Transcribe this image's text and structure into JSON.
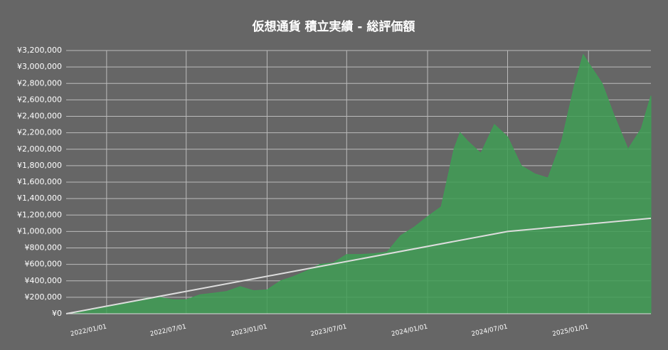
{
  "chart_data": {
    "type": "area",
    "title": "仮想通貨 積立実績 - 総評価額",
    "xlim": [
      "2021/10/01",
      "2025/05/23"
    ],
    "xticks": [
      "2022/01/01",
      "2022/07/01",
      "2023/01/01",
      "2023/07/01",
      "2024/01/01",
      "2024/07/01",
      "2025/01/01"
    ],
    "ylim": [
      0,
      3200000
    ],
    "yticks": [
      {
        "value": 0,
        "label": "¥0"
      },
      {
        "value": 200000,
        "label": "¥200,000"
      },
      {
        "value": 400000,
        "label": "¥400,000"
      },
      {
        "value": 600000,
        "label": "¥600,000"
      },
      {
        "value": 800000,
        "label": "¥800,000"
      },
      {
        "value": 1000000,
        "label": "¥1,000,000"
      },
      {
        "value": 1200000,
        "label": "¥1,200,000"
      },
      {
        "value": 1400000,
        "label": "¥1,400,000"
      },
      {
        "value": 1600000,
        "label": "¥1,600,000"
      },
      {
        "value": 1800000,
        "label": "¥1,800,000"
      },
      {
        "value": 2000000,
        "label": "¥2,000,000"
      },
      {
        "value": 2200000,
        "label": "¥2,200,000"
      },
      {
        "value": 2400000,
        "label": "¥2,400,000"
      },
      {
        "value": 2600000,
        "label": "¥2,600,000"
      },
      {
        "value": 2800000,
        "label": "¥2,800,000"
      },
      {
        "value": 3000000,
        "label": "¥3,000,000"
      },
      {
        "value": 3200000,
        "label": "¥3,200,000"
      }
    ],
    "grid": true,
    "series": [
      {
        "kind": "area",
        "color": "#3f9e55",
        "x": [
          "2021/10/01",
          "2021/11/01",
          "2021/12/01",
          "2022/01/01",
          "2022/02/01",
          "2022/03/01",
          "2022/04/01",
          "2022/05/01",
          "2022/06/01",
          "2022/07/01",
          "2022/08/01",
          "2022/09/01",
          "2022/10/01",
          "2022/11/01",
          "2022/12/01",
          "2023/01/01",
          "2023/02/01",
          "2023/03/01",
          "2023/04/01",
          "2023/05/01",
          "2023/06/01",
          "2023/07/01",
          "2023/08/01",
          "2023/09/01",
          "2023/10/01",
          "2023/11/01",
          "2023/12/01",
          "2024/01/01",
          "2024/02/01",
          "2024/03/01",
          "2024/03/15",
          "2024/04/01",
          "2024/05/01",
          "2024/06/01",
          "2024/07/01",
          "2024/08/01",
          "2024/09/01",
          "2024/10/01",
          "2024/11/01",
          "2024/12/01",
          "2024/12/20",
          "2025/01/01",
          "2025/02/01",
          "2025/03/01",
          "2025/04/01",
          "2025/05/01",
          "2025/05/23"
        ],
        "values": [
          0,
          30000,
          60000,
          90000,
          110000,
          150000,
          190000,
          200000,
          170000,
          170000,
          230000,
          250000,
          270000,
          330000,
          280000,
          290000,
          400000,
          450000,
          520000,
          600000,
          620000,
          720000,
          720000,
          730000,
          750000,
          950000,
          1050000,
          1180000,
          1300000,
          2000000,
          2200000,
          2100000,
          1950000,
          2300000,
          2150000,
          1800000,
          1700000,
          1650000,
          2100000,
          2800000,
          3150000,
          3050000,
          2800000,
          2400000,
          2000000,
          2250000,
          2650000
        ]
      },
      {
        "kind": "line",
        "color": "#dddddd",
        "x": [
          "2021/10/01",
          "2024/07/01",
          "2025/05/23"
        ],
        "values": [
          0,
          1000000,
          1160000
        ]
      }
    ]
  }
}
